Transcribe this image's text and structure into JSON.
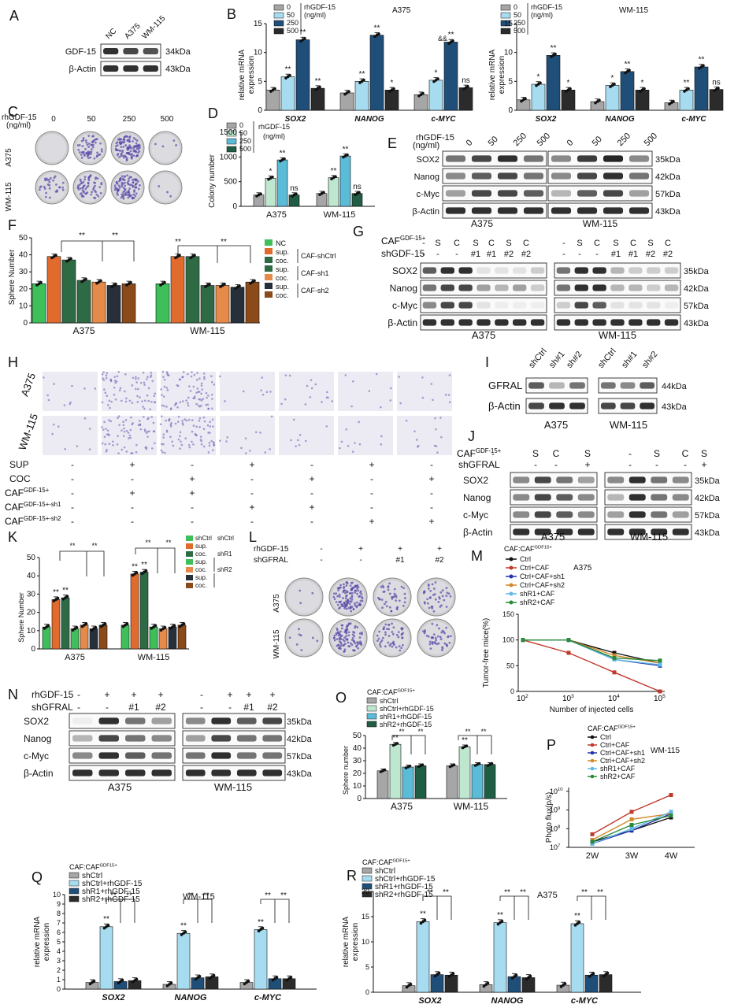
{
  "panel_letters": [
    "A",
    "B",
    "C",
    "D",
    "E",
    "F",
    "G",
    "H",
    "I",
    "J",
    "K",
    "L",
    "M",
    "N",
    "O",
    "P",
    "Q",
    "R"
  ],
  "colors": {
    "gray": "#a6a6a6",
    "lightblue": "#a7dcf0",
    "teal": "#5bbcd8",
    "darkblue": "#1f4e79",
    "black": "#2b2b2b",
    "green": "#3fbf5a",
    "orange": "#e06b2d",
    "darkgreen": "#2e6b45",
    "red": "#c0392b"
  },
  "A": {
    "lanes": [
      "NC",
      "A375",
      "WM-115"
    ],
    "rows": [
      "GDF-15",
      "β-Actin"
    ],
    "kda": [
      "34kDa",
      "43kDa"
    ]
  },
  "B": {
    "title": "A375",
    "legend": [
      "0",
      "50",
      "250",
      "500"
    ],
    "legend_unit": "rhGDF-15",
    "legend_unit2": "(ng/ml)",
    "ylabel": [
      "relative mRNA",
      "expression"
    ],
    "groups": [
      "SOX2",
      "NANOG",
      "c-MYC"
    ],
    "values": [
      [
        3.5,
        5.8,
        12.2,
        3.8
      ],
      [
        3.0,
        5.0,
        13.0,
        3.5
      ],
      [
        2.7,
        5.2,
        11.8,
        3.9
      ]
    ],
    "sig": [
      [
        "",
        "**",
        "**",
        "**"
      ],
      [
        "",
        "**",
        "**",
        "*"
      ],
      [
        "",
        "*",
        "**",
        "ns"
      ]
    ],
    "extra_sig": "&&",
    "ymax": 15,
    "ticks": [
      0,
      5,
      10,
      15
    ]
  },
  "B2": {
    "title": "WM-115",
    "legend": [
      "0",
      "50",
      "250",
      "500"
    ],
    "legend_unit": "rhGDF-15",
    "legend_unit2": "(ng/ml)",
    "ylabel": [
      "relative mRNA",
      "expression"
    ],
    "groups": [
      "SOX2",
      "NANOG",
      "c-MYC"
    ],
    "values": [
      [
        1.8,
        4.5,
        9.5,
        3.5
      ],
      [
        1.5,
        4.3,
        6.7,
        3.5
      ],
      [
        1.3,
        3.5,
        7.5,
        3.6
      ]
    ],
    "sig": [
      [
        "",
        "*",
        "**",
        "*"
      ],
      [
        "",
        "*",
        "**",
        "*"
      ],
      [
        "",
        "**",
        "**",
        "ns"
      ]
    ],
    "ymax": 15,
    "ticks": [
      0,
      5,
      10,
      15
    ]
  },
  "C": {
    "header": "rhGDF-15",
    "unit": "(ng/ml)",
    "doses": [
      "0",
      "50",
      "250",
      "500"
    ],
    "rows": [
      "A375",
      "WM-115"
    ]
  },
  "D": {
    "legend": [
      "0",
      "50",
      "250",
      "500"
    ],
    "legend_unit": "rhGDF-15",
    "legend_unit2": "(ng/ml)",
    "ylabel": "Colony number",
    "groups": [
      "A375",
      "WM-115"
    ],
    "values": [
      [
        230,
        570,
        940,
        230
      ],
      [
        260,
        580,
        1020,
        260
      ]
    ],
    "sig": [
      [
        "",
        "*",
        "**",
        "ns"
      ],
      [
        "",
        "**",
        "**",
        "ns"
      ]
    ],
    "ymax": 1500,
    "ticks": [
      0,
      500,
      1000,
      1500
    ]
  },
  "E": {
    "header": "rhGDF-15",
    "unit": "(ng/ml)",
    "doses": [
      "0",
      "50",
      "250",
      "500",
      "0",
      "50",
      "250",
      "500"
    ],
    "rows": [
      "SOX2",
      "Nanog",
      "c-Myc",
      "β-Actin"
    ],
    "kda": [
      "35kDa",
      "42kDa",
      "57kDa",
      "43kDa"
    ],
    "cells": [
      "A375",
      "WM-115"
    ]
  },
  "F": {
    "ylabel": "Sphere Number",
    "groups": [
      "A375",
      "WM-115"
    ],
    "legend": [
      "NC",
      "sup.",
      "coc.",
      "sup.",
      "coc.",
      "sup.",
      "coc."
    ],
    "legend_groups": [
      "CAF-shCtrl",
      "CAF-sh1",
      "CAF-sh2"
    ],
    "values": [
      [
        23,
        39,
        37,
        25,
        24,
        22,
        23
      ],
      [
        23,
        39,
        39,
        22,
        22,
        21,
        24
      ]
    ],
    "sig_top": [
      "**",
      "**",
      "**",
      "**"
    ],
    "ymax": 50,
    "ticks": [
      0,
      10,
      20,
      30,
      40,
      50
    ]
  },
  "G": {
    "row1_label": "CAF",
    "row1_sup": "GDF-15+",
    "row1": [
      "-",
      "S",
      "C",
      "S",
      "C",
      "S",
      "C",
      "-",
      "S",
      "C",
      "S",
      "C",
      "S",
      "C"
    ],
    "row2_label": "shGDF-15",
    "row2": [
      "-",
      "-",
      "-",
      "#1",
      "#1",
      "#2",
      "#2",
      "-",
      "-",
      "-",
      "#1",
      "#1",
      "#2",
      "#2"
    ],
    "rows": [
      "SOX2",
      "Nanog",
      "c-Myc",
      "β-Actin"
    ],
    "kda": [
      "35kDa",
      "42kDa",
      "57kDa",
      "43kDa"
    ],
    "cells": [
      "A375",
      "WM-115"
    ]
  },
  "H": {
    "rows": [
      "A375",
      "WM-115"
    ],
    "treat_labels": [
      "SUP",
      "COC",
      "CAF",
      "CAF",
      "CAF"
    ],
    "treat_sups": [
      "",
      "",
      "GDF-15+",
      "GDF-15+-sh1",
      "GDF-15+-sh2"
    ],
    "treat_values": [
      [
        "-",
        "+",
        "-",
        "+",
        "-",
        "+",
        "-"
      ],
      [
        "-",
        "-",
        "+",
        "-",
        "+",
        "-",
        "+"
      ],
      [
        "-",
        "+",
        "+",
        "-",
        "-",
        "-",
        "-"
      ],
      [
        "-",
        "-",
        "-",
        "+",
        "+",
        "-",
        "-"
      ],
      [
        "-",
        "-",
        "-",
        "-",
        "-",
        "+",
        "+"
      ]
    ]
  },
  "I": {
    "lanes": [
      "shCtrl",
      "sh#1",
      "sh#2"
    ],
    "rows": [
      "GFRAL",
      "β-Actin"
    ],
    "kda": [
      "44kDa",
      "43kDa"
    ],
    "cells": [
      "A375",
      "WM-115"
    ]
  },
  "J": {
    "row1_label": "CAF",
    "row1_sup": "GDF-15+",
    "row1": [
      "-",
      "S",
      "C",
      "S",
      "-",
      "S",
      "C",
      "S"
    ],
    "row2_label": "shGFRAL",
    "row2": [
      "-",
      "-",
      "-",
      "+",
      "-",
      "-",
      "-",
      "+"
    ],
    "rows": [
      "SOX2",
      "Nanog",
      "c-Myc",
      "β-Actin"
    ],
    "kda": [
      "35kDa",
      "42kDa",
      "57kDa",
      "43kDa"
    ],
    "cells": [
      "A375",
      "WM-115"
    ]
  },
  "K": {
    "ylabel": "Sphere Number",
    "groups": [
      "A375",
      "WM-115"
    ],
    "legend": [
      "shCtrl",
      "sup.",
      "coc.",
      "sup.",
      "coc.",
      "sup.",
      "coc."
    ],
    "legend_groups": [
      "shCtrl",
      "shR1",
      "shR2"
    ],
    "values": [
      [
        12,
        27,
        28,
        11,
        13,
        11,
        13
      ],
      [
        13,
        41,
        42,
        12,
        11,
        12,
        13
      ]
    ],
    "sig": [
      [
        "",
        "**",
        "**",
        "",
        "",
        "",
        ""
      ],
      [
        "",
        "**",
        "**",
        "",
        "",
        "",
        ""
      ]
    ],
    "sig_top": [
      "**",
      "**",
      "**",
      "**"
    ],
    "ymax": 50,
    "ticks": [
      0,
      10,
      20,
      30,
      40,
      50
    ]
  },
  "L": {
    "row1_label": "rhGDF-15",
    "row1": [
      "-",
      "+",
      "+",
      "+"
    ],
    "row2_label": "shGFRAL",
    "row2": [
      "-",
      "-",
      "#1",
      "#2"
    ],
    "rows": [
      "A375",
      "WM-115"
    ]
  },
  "M": {
    "legend_title": "CAF:CAF",
    "legend_sup": "GDF15+",
    "title": "A375",
    "ylabel": "Tumor-free mice(%)",
    "xlabel": "Number of injected cells",
    "xticks": [
      "10",
      "10",
      "10",
      "10"
    ],
    "xexp": [
      "2",
      "3",
      "4",
      "5"
    ],
    "yticks": [
      0,
      50,
      100,
      150
    ],
    "series": [
      {
        "name": "Ctrl",
        "color": "#111111",
        "values": [
          100,
          100,
          75,
          55
        ]
      },
      {
        "name": "Ctrl+CAF",
        "color": "#c0392b",
        "values": [
          100,
          75,
          37,
          0
        ]
      },
      {
        "name": "Ctrl+CAF+sh1",
        "color": "#2233aa",
        "values": [
          100,
          100,
          62,
          50
        ]
      },
      {
        "name": "Ctrl+CAF+sh2",
        "color": "#d08a2a",
        "values": [
          100,
          100,
          70,
          55
        ]
      },
      {
        "name": "shR1+CAF",
        "color": "#5fb8e8",
        "values": [
          100,
          100,
          62,
          52
        ]
      },
      {
        "name": "shR2+CAF",
        "color": "#2a8a3a",
        "values": [
          100,
          100,
          65,
          60
        ]
      }
    ]
  },
  "N": {
    "row1_label": "rhGDF-15",
    "row1": [
      "-",
      "+",
      "+",
      "+",
      "-",
      "+",
      "+",
      "+"
    ],
    "row2_label": "shGFRAL",
    "row2": [
      "-",
      "-",
      "#1",
      "#2",
      "-",
      "-",
      "#1",
      "#2"
    ],
    "rows": [
      "SOX2",
      "Nanog",
      "c-Myc",
      "β-Actin"
    ],
    "kda": [
      "35kDa",
      "42kDa",
      "57kDa",
      "43kDa"
    ],
    "cells": [
      "A375",
      "WM-115"
    ]
  },
  "O": {
    "legend_title": "CAF:CAF",
    "legend_sup": "GDF15+",
    "legend": [
      "shCtrl",
      "shCtrl+rhGDF-15",
      "shR1+rhGDF-15",
      "shR2+rhGDF-15"
    ],
    "ylabel": "Sphere number",
    "groups": [
      "A375",
      "WM-115"
    ],
    "values": [
      [
        22,
        43,
        25,
        26
      ],
      [
        26,
        41,
        27,
        27
      ]
    ],
    "sig": [
      [
        "",
        "**",
        "",
        ""
      ],
      [
        "",
        "**",
        "",
        ""
      ]
    ],
    "sig_top": [
      "**",
      "**",
      "**",
      "**"
    ],
    "ymax": 50,
    "ticks": [
      0,
      10,
      20,
      30,
      40,
      50
    ]
  },
  "P": {
    "legend_title": "CAF:CAF",
    "legend_sup": "GDF15+",
    "title": "WM-115",
    "ylabel": "Photo flux(p/s)",
    "xticks": [
      "2W",
      "3W",
      "4W"
    ],
    "yexp": [
      "7",
      "8",
      "9",
      "10"
    ],
    "series": [
      {
        "name": "Ctrl",
        "color": "#111111",
        "values": [
          7.3,
          7.9,
          8.6
        ]
      },
      {
        "name": "Ctrl+CAF",
        "color": "#c0392b",
        "values": [
          7.7,
          8.9,
          9.8
        ]
      },
      {
        "name": "Ctrl+CAF+sh1",
        "color": "#2233aa",
        "values": [
          7.2,
          7.9,
          8.8
        ]
      },
      {
        "name": "Ctrl+CAF+sh2",
        "color": "#d08a2a",
        "values": [
          7.4,
          8.5,
          8.8
        ]
      },
      {
        "name": "shR1+CAF",
        "color": "#5fb8e8",
        "values": [
          7.2,
          8.0,
          8.9
        ]
      },
      {
        "name": "shR2+CAF",
        "color": "#2a8a3a",
        "values": [
          7.3,
          8.2,
          8.7
        ]
      }
    ]
  },
  "Q": {
    "legend_title": "CAF:CAF",
    "legend_sup": "GDF15+",
    "legend": [
      "shCtrl",
      "shCtrl+rhGDF-15",
      "shR1+rhGDF-15",
      "shR2+rhGDF-15"
    ],
    "title": "WM-115",
    "ylabel": [
      "relative mRNA",
      "expression"
    ],
    "groups": [
      "SOX2",
      "NANOG",
      "c-MYC"
    ],
    "values": [
      [
        0.7,
        6.6,
        0.8,
        0.9
      ],
      [
        0.5,
        5.9,
        1.2,
        1.3
      ],
      [
        0.7,
        6.3,
        1.1,
        1.1
      ]
    ],
    "sig": [
      [
        "",
        "**",
        "",
        ""
      ],
      [
        "",
        "**",
        "",
        ""
      ],
      [
        "",
        "**",
        "",
        ""
      ]
    ],
    "sig_top": [
      "**",
      "**",
      "**",
      "**",
      "**",
      "**"
    ],
    "ymax": 10,
    "ticks": [
      0,
      1,
      2,
      3,
      4,
      5,
      6,
      7,
      8,
      9,
      10
    ]
  },
  "R": {
    "legend_title": "CAF:CAF",
    "legend_sup": "GDF15+",
    "legend": [
      "shCtrl",
      "shCtrl+rhGDF-15",
      "shR1+rhGDF-15",
      "shR2+rhGDF-15"
    ],
    "title": "A375",
    "ylabel": [
      "relative mRNA",
      "expression"
    ],
    "groups": [
      "SOX2",
      "NANOG",
      "c-MYC"
    ],
    "values": [
      [
        1.3,
        14.0,
        3.5,
        3.4
      ],
      [
        1.5,
        13.8,
        3.1,
        2.9
      ],
      [
        1.4,
        13.6,
        3.4,
        3.5
      ]
    ],
    "sig": [
      [
        "",
        "**",
        "",
        ""
      ],
      [
        "",
        "**",
        "",
        ""
      ],
      [
        "",
        "**",
        "",
        ""
      ]
    ],
    "sig_top": [
      "**",
      "**",
      "**",
      "**",
      "**",
      "**"
    ],
    "ymax": 20,
    "ticks": [
      0,
      5,
      10,
      15,
      20
    ]
  }
}
